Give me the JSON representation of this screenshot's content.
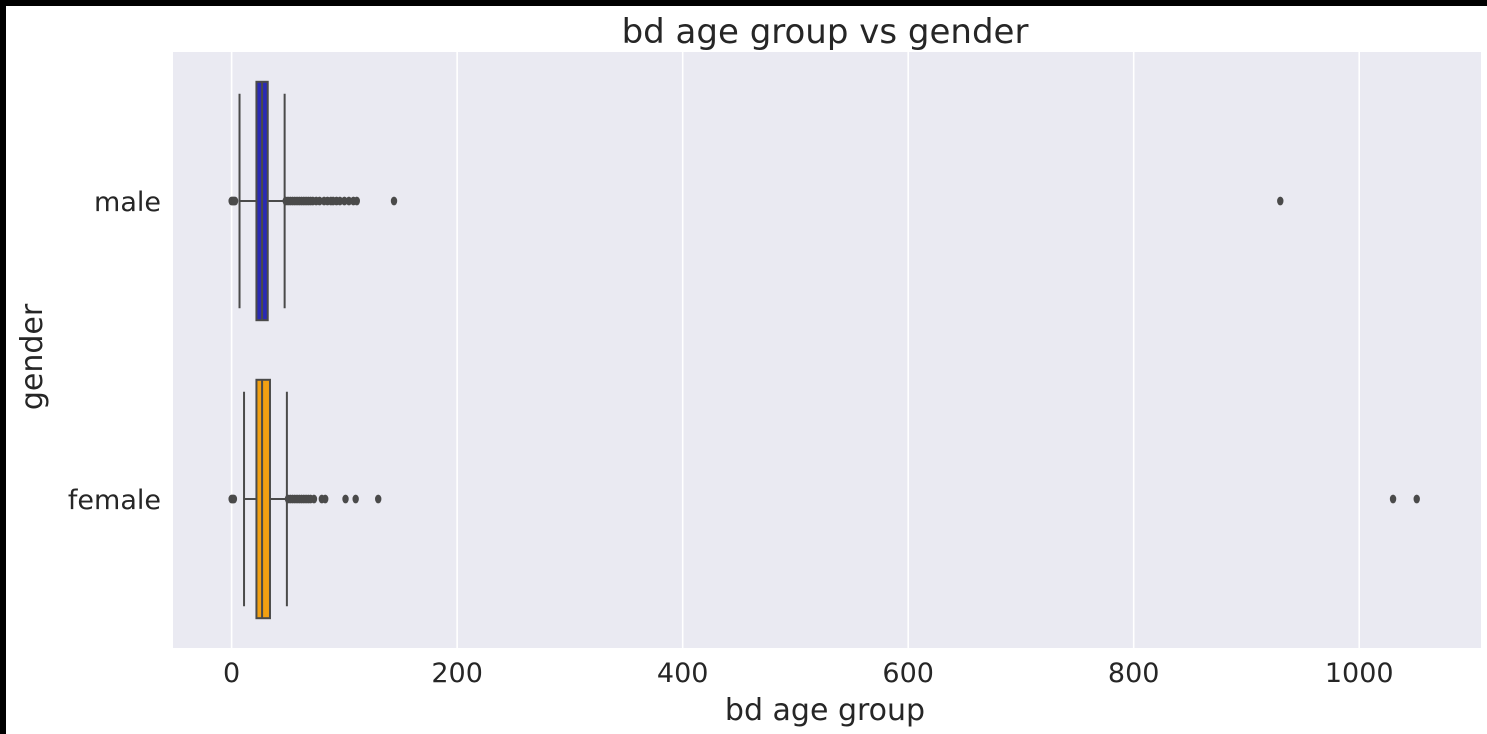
{
  "chart_data": {
    "type": "boxplot",
    "orientation": "horizontal",
    "title": "bd age group vs gender",
    "xlabel": "bd age group",
    "ylabel": "gender",
    "xlim": [
      -52,
      1108
    ],
    "xticks": [
      0,
      200,
      400,
      600,
      800,
      1000
    ],
    "xtick_labels": [
      "0",
      "200",
      "400",
      "600",
      "800",
      "1000"
    ],
    "grid": "x",
    "background": "#eaeaf2",
    "categories": [
      "male",
      "female"
    ],
    "boxes": [
      {
        "category": "male",
        "color": "#2a2ab5",
        "whisker_low": 7,
        "q1": 22,
        "median": 27,
        "q3": 32,
        "whisker_high": 47,
        "outliers": [
          0,
          1,
          2,
          3,
          48,
          50,
          52,
          54,
          56,
          58,
          60,
          62,
          64,
          66,
          68,
          70,
          72,
          75,
          78,
          82,
          85,
          88,
          90,
          93,
          96,
          100,
          104,
          108,
          111,
          144,
          930
        ]
      },
      {
        "category": "female",
        "color": "#f2a012",
        "whisker_low": 11,
        "q1": 22,
        "median": 27,
        "q3": 34,
        "whisker_high": 49,
        "outliers": [
          0,
          1,
          2,
          50,
          52,
          54,
          56,
          58,
          60,
          62,
          64,
          66,
          68,
          70,
          73,
          80,
          83,
          101,
          110,
          130,
          1030,
          1051
        ]
      }
    ]
  }
}
